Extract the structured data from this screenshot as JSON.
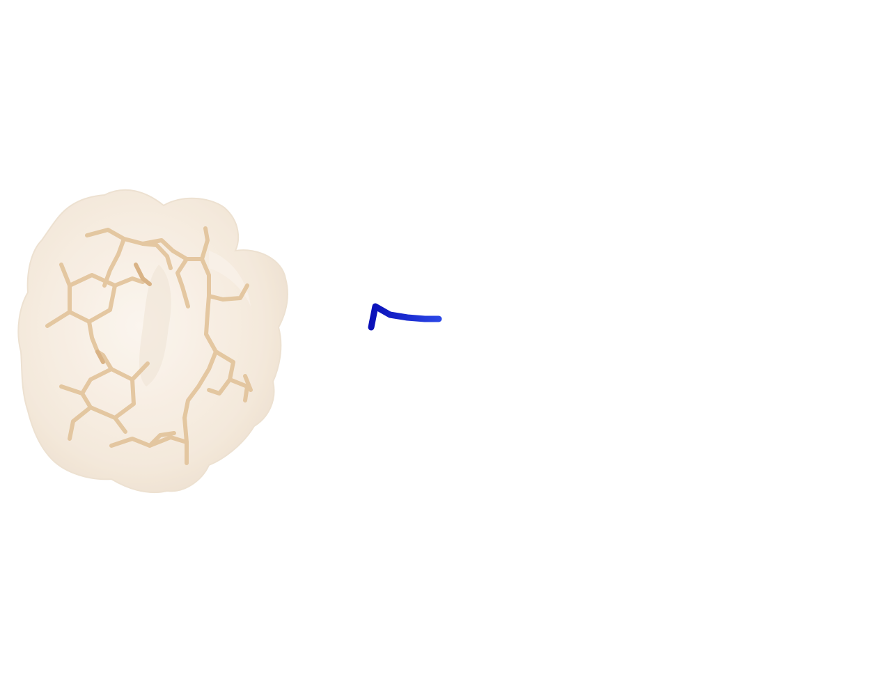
{
  "scene": {
    "background_color": "#ffffff",
    "molecule": {
      "surface_color": "#f3e4d2",
      "stick_color": "#e2c39a",
      "style": "transparent molecular surface with stick model"
    },
    "ligand": {
      "color": "#0a14cc",
      "style": "stick fragment"
    }
  }
}
